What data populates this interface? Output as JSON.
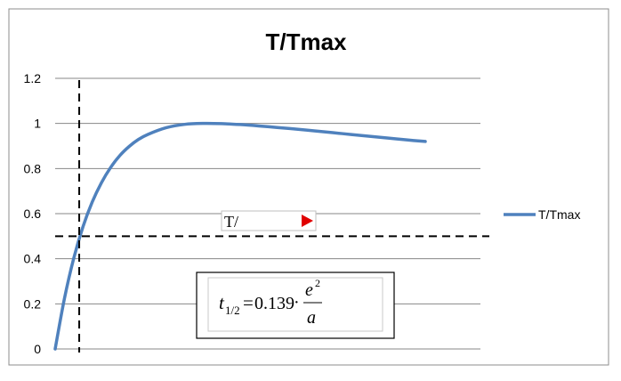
{
  "chart_data": {
    "type": "line",
    "title": "T/Tmax",
    "xlabel": "",
    "ylabel": "",
    "ylim": [
      0,
      1.2
    ],
    "y_ticks": [
      "0",
      "0.2",
      "0.4",
      "0.6",
      "0.8",
      "1",
      "1.2"
    ],
    "grid": true,
    "legend_position": "right",
    "series": [
      {
        "name": "T/Tmax",
        "color": "#4F81BD",
        "x": [
          0,
          0.25,
          0.5,
          0.75,
          1,
          1.25,
          1.5,
          1.75,
          2,
          2.25,
          2.5,
          3,
          3.5,
          4,
          4.5,
          5,
          5.5,
          6,
          6.5,
          7,
          7.5,
          8,
          8.5,
          9,
          9.5,
          10
        ],
        "values": [
          0,
          0.223,
          0.401,
          0.541,
          0.651,
          0.737,
          0.805,
          0.858,
          0.898,
          0.929,
          0.951,
          0.981,
          0.996,
          1.0,
          0.999,
          0.995,
          0.989,
          0.982,
          0.975,
          0.967,
          0.959,
          0.951,
          0.943,
          0.935,
          0.927,
          0.92
        ]
      }
    ],
    "xlim": [
      0,
      10
    ],
    "reference_lines": [
      {
        "orientation": "horizontal",
        "y": 0.5,
        "style": "dashed",
        "color": "#000000"
      },
      {
        "orientation": "vertical",
        "x": 0.65,
        "style": "dashed",
        "color": "#000000"
      }
    ]
  },
  "annotations": {
    "label_box_text": "T/",
    "label_arrow_color": "#E00000",
    "formula": {
      "lhs_base": "t",
      "lhs_sub": "1/2",
      "equals": "=",
      "coefficient": "0.139",
      "dot": "·",
      "numerator_base": "e",
      "numerator_exp": "2",
      "denominator": "a"
    }
  },
  "colors": {
    "frame": "#8C8C8C",
    "grid": "#878787",
    "axis_text": "#000000"
  }
}
